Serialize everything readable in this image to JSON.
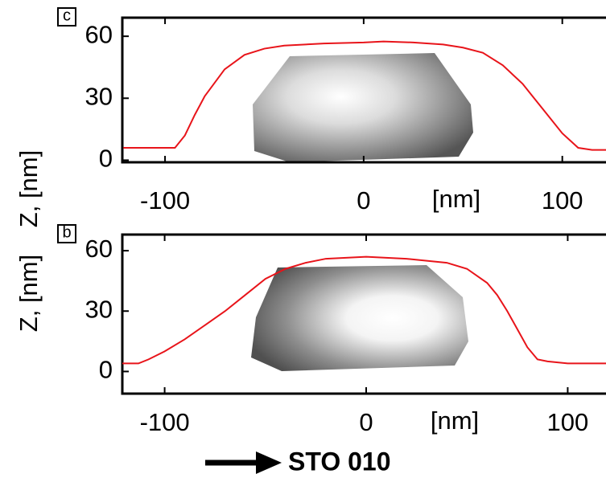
{
  "chart_data": [
    {
      "type": "line",
      "panel_label": "c",
      "xlabel": "[nm]",
      "ylabel": "Z, [nm]",
      "x": [
        -121,
        -105,
        -95,
        -90,
        -85,
        -80,
        -70,
        -60,
        -50,
        -40,
        -20,
        0,
        10,
        25,
        40,
        50,
        60,
        70,
        80,
        85,
        90,
        100,
        108,
        115,
        122
      ],
      "values": [
        6,
        6,
        6,
        12,
        22,
        31,
        44,
        51,
        54,
        55.5,
        56.5,
        57,
        57.5,
        57,
        56,
        54.5,
        52,
        46,
        37,
        31,
        25,
        13,
        6,
        5,
        5
      ],
      "color": "#e8141a",
      "xlim": [
        -121.5,
        122
      ],
      "ylim": [
        -1,
        69
      ],
      "xticks": [
        -100,
        0,
        100
      ],
      "yticks": [
        0,
        30,
        60
      ]
    },
    {
      "type": "line",
      "panel_label": "b",
      "xlabel": "[nm]",
      "ylabel": "Z, [nm]",
      "x": [
        -121,
        -113,
        -108,
        -100,
        -90,
        -80,
        -70,
        -60,
        -50,
        -40,
        -30,
        -20,
        0,
        20,
        40,
        50,
        60,
        65,
        70,
        75,
        80,
        85,
        90,
        100,
        119
      ],
      "values": [
        4,
        4,
        6,
        10,
        16,
        23,
        30,
        38,
        46,
        51,
        54,
        56,
        57,
        56,
        54,
        51,
        44,
        38,
        30,
        21,
        12,
        6,
        5,
        4,
        4
      ],
      "color": "#e8141a",
      "xlim": [
        -121,
        119
      ],
      "ylim": [
        -11,
        68
      ],
      "xticks": [
        -100,
        0,
        100
      ],
      "yticks": [
        0,
        30,
        60
      ]
    }
  ],
  "caption": "STO 010"
}
